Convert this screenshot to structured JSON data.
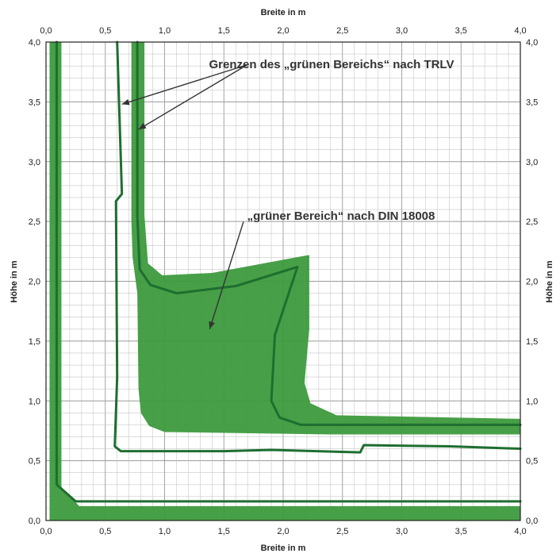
{
  "chart_data": {
    "type": "area",
    "xlabel_top": "Breite in m",
    "xlabel_bottom": "Breite in m",
    "ylabel_left": "Höhe in m",
    "ylabel_right": "Höhe in m",
    "xlim": [
      0,
      4
    ],
    "ylim": [
      0,
      4
    ],
    "x_ticks": [
      "0,0",
      "0,5",
      "1,0",
      "1,5",
      "2,0",
      "2,5",
      "3,0",
      "3,5",
      "4,0"
    ],
    "y_ticks": [
      "0,0",
      "0,5",
      "1,0",
      "1,5",
      "2,0",
      "2,5",
      "3,0",
      "3,5",
      "4,0"
    ],
    "grid": true,
    "fill_color": "#3d9a3d",
    "line_color": "#1e6e30",
    "annotations": [
      {
        "text": "Grenzen des „grünen Bereichs“ nach TRLV",
        "anchor": [
          2.5,
          3.85
        ],
        "arrows_to": [
          [
            0.64,
            3.48
          ],
          [
            0.78,
            3.27
          ]
        ]
      },
      {
        "text": "„grüner Bereich“ nach DIN 18008",
        "anchor": [
          2.2,
          2.55
        ],
        "arrows_to": [
          [
            1.38,
            1.6
          ]
        ]
      }
    ],
    "series": [
      {
        "kind": "area",
        "polygons": [
          [
            [
              0.03,
              4.0
            ],
            [
              0.13,
              4.0
            ],
            [
              0.13,
              0.28
            ],
            [
              0.28,
              0.12
            ],
            [
              4.0,
              0.12
            ],
            [
              4.0,
              0.0
            ],
            [
              0.03,
              0.0
            ]
          ],
          [
            [
              0.72,
              4.0
            ],
            [
              0.83,
              4.0
            ],
            [
              0.83,
              2.55
            ],
            [
              0.86,
              2.15
            ],
            [
              0.98,
              2.05
            ],
            [
              1.4,
              2.07
            ],
            [
              2.22,
              2.22
            ],
            [
              2.22,
              1.6
            ],
            [
              2.18,
              1.15
            ],
            [
              2.23,
              0.98
            ],
            [
              2.45,
              0.88
            ],
            [
              4.0,
              0.85
            ],
            [
              4.0,
              0.72
            ],
            [
              2.4,
              0.72
            ],
            [
              1.0,
              0.74
            ],
            [
              0.87,
              0.79
            ],
            [
              0.8,
              0.9
            ],
            [
              0.78,
              1.1
            ],
            [
              0.77,
              1.9
            ],
            [
              0.73,
              2.2
            ],
            [
              0.72,
              2.5
            ]
          ]
        ]
      },
      {
        "kind": "line",
        "points": [
          [
            0.09,
            4.0
          ],
          [
            0.09,
            0.3
          ],
          [
            0.25,
            0.16
          ],
          [
            4.0,
            0.16
          ]
        ]
      },
      {
        "kind": "line",
        "points": [
          [
            0.6,
            4.0
          ],
          [
            0.64,
            2.73
          ],
          [
            0.59,
            2.67
          ],
          [
            0.6,
            1.2
          ],
          [
            0.58,
            0.62
          ],
          [
            0.63,
            0.58
          ],
          [
            1.5,
            0.58
          ],
          [
            1.9,
            0.59
          ],
          [
            2.65,
            0.57
          ],
          [
            2.68,
            0.63
          ],
          [
            3.4,
            0.62
          ],
          [
            4.0,
            0.6
          ]
        ]
      },
      {
        "kind": "line",
        "points": [
          [
            0.77,
            4.0
          ],
          [
            0.77,
            2.55
          ],
          [
            0.79,
            2.1
          ],
          [
            0.88,
            1.97
          ],
          [
            1.1,
            1.9
          ],
          [
            1.6,
            1.96
          ],
          [
            2.12,
            2.12
          ],
          [
            1.93,
            1.55
          ],
          [
            1.9,
            1.0
          ],
          [
            1.97,
            0.86
          ],
          [
            2.15,
            0.8
          ],
          [
            4.0,
            0.8
          ]
        ]
      }
    ]
  }
}
